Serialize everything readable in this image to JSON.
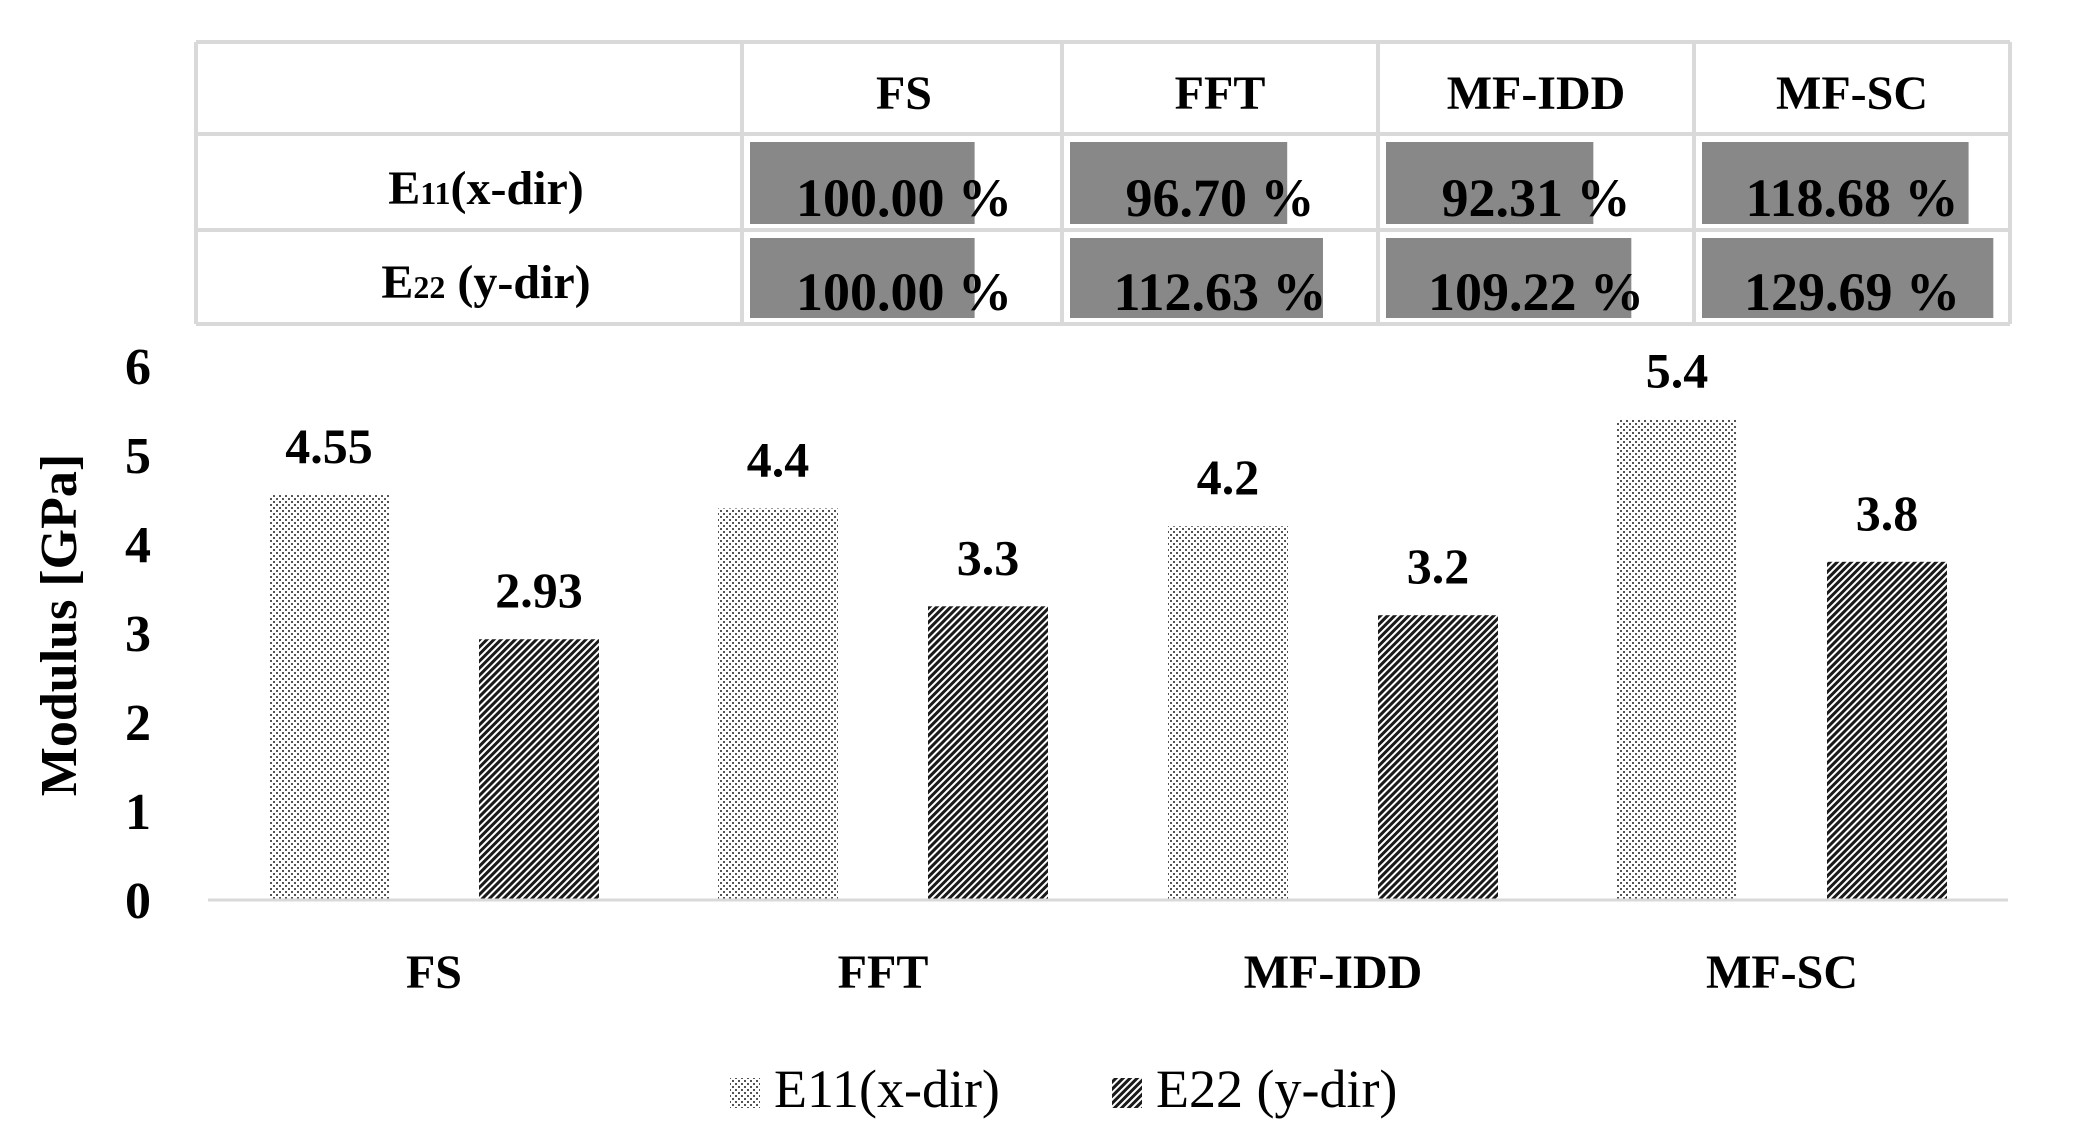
{
  "chart_data": {
    "type": "bar",
    "categories": [
      "FS",
      "FFT",
      "MF-IDD",
      "MF-SC"
    ],
    "series": [
      {
        "name": "E11(x-dir)",
        "values": [
          4.55,
          4.4,
          4.2,
          5.4
        ],
        "labels": [
          "4.55",
          "4.4",
          "4.2",
          "5.4"
        ],
        "pattern": "dots"
      },
      {
        "name": "E22 (y-dir)",
        "values": [
          2.93,
          3.3,
          3.2,
          3.8
        ],
        "labels": [
          "2.93",
          "3.3",
          "3.2",
          "3.8"
        ],
        "pattern": "hatch"
      }
    ],
    "ylabel": "Modulus [GPa]",
    "ylim": [
      0,
      6
    ],
    "yticks": [
      "0",
      "1",
      "2",
      "3",
      "4",
      "5",
      "6"
    ],
    "legend_position": "bottom",
    "grid": false
  },
  "table": {
    "columns": [
      "FS",
      "FFT",
      "MF-IDD",
      "MF-SC"
    ],
    "rows": [
      {
        "label_main": "E",
        "label_sub": "11",
        "label_rest": "(x-dir)",
        "values": [
          100.0,
          96.7,
          92.31,
          118.68
        ],
        "texts": [
          "100.00 %",
          "96.70 %",
          "92.31 %",
          "118.68 %"
        ]
      },
      {
        "label_main": "E",
        "label_sub": "22",
        "label_rest": " (y-dir)",
        "values": [
          100.0,
          112.63,
          109.22,
          129.69
        ],
        "texts": [
          "100.00 %",
          "112.63 %",
          "109.22 %",
          "129.69 %"
        ]
      }
    ],
    "bar_max": 130,
    "bar_color": "#888888"
  },
  "colors": {
    "text": "#000000",
    "axis": "#d9d9d9",
    "table_border": "#d9d9d9",
    "bar_ink": "#333333"
  }
}
